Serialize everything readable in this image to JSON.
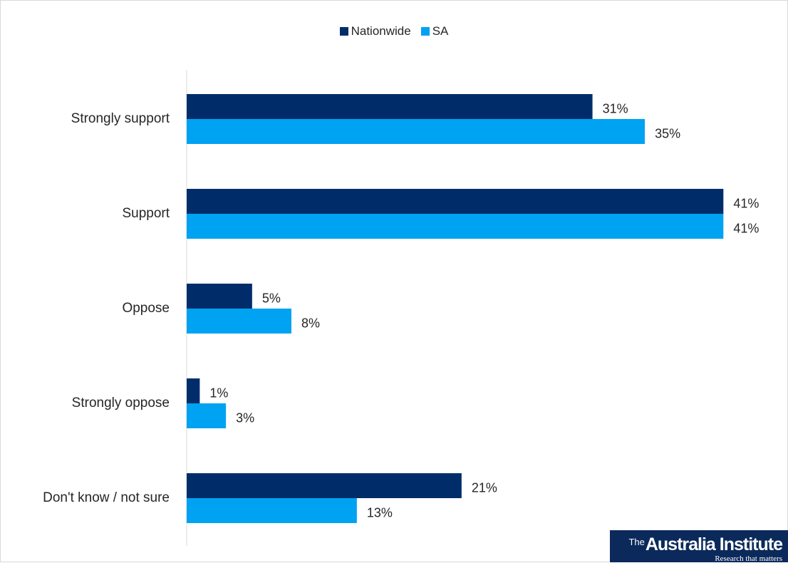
{
  "chart_data": {
    "type": "bar",
    "orientation": "horizontal",
    "categories": [
      "Strongly support",
      "Support",
      "Oppose",
      "Strongly oppose",
      "Don't know / not sure"
    ],
    "series": [
      {
        "name": "Nationwide",
        "values": [
          31,
          41,
          5,
          1,
          21
        ],
        "labels": [
          "31%",
          "41%",
          "5%",
          "1%",
          "21%"
        ],
        "color": "#002d6a"
      },
      {
        "name": "SA",
        "values": [
          35,
          41,
          8,
          3,
          13
        ],
        "labels": [
          "35%",
          "41%",
          "8%",
          "3%",
          "13%"
        ],
        "color": "#00a2f2"
      }
    ],
    "unit": "%",
    "xlim": [
      0,
      41.2
    ],
    "legend_position": "top-center",
    "grid": false
  },
  "logo": {
    "prefix": "The",
    "name": "Australia Institute",
    "tagline": "Research that matters"
  }
}
